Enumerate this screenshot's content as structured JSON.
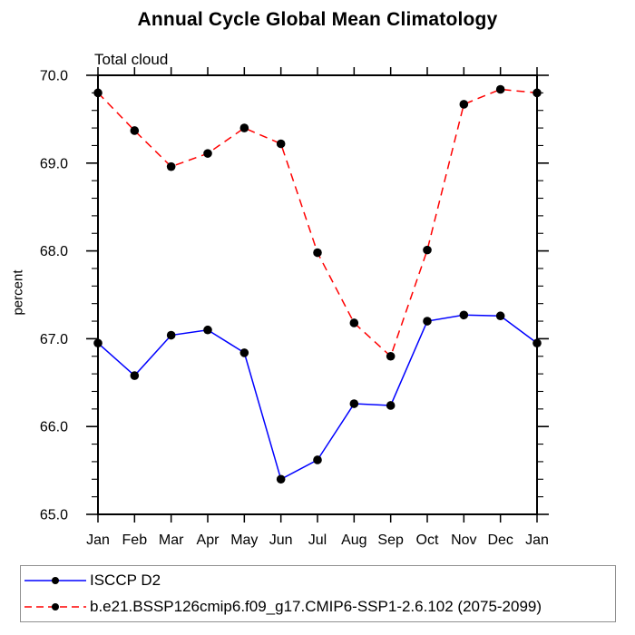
{
  "header": {
    "title": "Annual Cycle Global Mean Climatology",
    "subtitle": "Total cloud"
  },
  "colors": {
    "obs_line": "#0000ff",
    "model_line": "#ff0000",
    "marker": "#000000",
    "axis": "#000000",
    "legend_border": "#909090"
  },
  "chart_data": {
    "type": "line",
    "title": "Annual Cycle Global Mean Climatology",
    "subtitle": "Total cloud",
    "xlabel": "",
    "ylabel": "percent",
    "ylim": [
      65.0,
      70.0
    ],
    "ytick_major_step": 1.0,
    "ytick_minor_step": 0.2,
    "ytick_labels": [
      "65.0",
      "66.0",
      "67.0",
      "68.0",
      "69.0",
      "70.0"
    ],
    "grid": false,
    "legend_position": "bottom-left",
    "categories": [
      "Jan",
      "Feb",
      "Mar",
      "Apr",
      "May",
      "Jun",
      "Jul",
      "Aug",
      "Sep",
      "Oct",
      "Nov",
      "Dec",
      "Jan"
    ],
    "series": [
      {
        "name": "ISCCP D2",
        "color": "#0000ff",
        "line_style": "solid",
        "marker": "filled-circle",
        "marker_color": "#000000",
        "values": [
          66.95,
          66.58,
          67.04,
          67.1,
          66.84,
          65.4,
          65.62,
          66.26,
          66.24,
          67.2,
          67.27,
          67.26,
          66.95
        ]
      },
      {
        "name": "b.e21.BSSP126cmip6.f09_g17.CMIP6-SSP1-2.6.102 (2075-2099)",
        "color": "#ff0000",
        "line_style": "dashed",
        "marker": "filled-circle",
        "marker_color": "#000000",
        "values": [
          69.8,
          69.37,
          68.96,
          69.11,
          69.4,
          69.22,
          67.98,
          67.18,
          66.8,
          68.01,
          69.67,
          69.84,
          69.8
        ]
      }
    ]
  }
}
